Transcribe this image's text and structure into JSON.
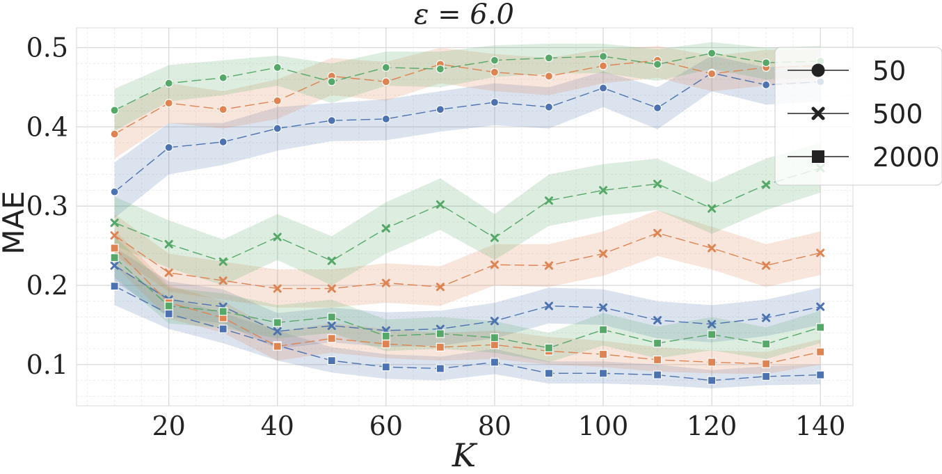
{
  "chart_data": {
    "type": "line",
    "title": "ε = 6.0",
    "xlabel": "K",
    "ylabel": "MAE",
    "xlim": [
      3,
      146
    ],
    "ylim": [
      0.048,
      0.525
    ],
    "x": [
      10,
      20,
      30,
      40,
      50,
      60,
      70,
      80,
      90,
      100,
      110,
      120,
      130,
      140
    ],
    "x_ticks": [
      20,
      40,
      60,
      80,
      100,
      120,
      140
    ],
    "x_tick_labels": [
      "20",
      "40",
      "60",
      "80",
      "100",
      "120",
      "140"
    ],
    "y_ticks": [
      0.1,
      0.2,
      0.3,
      0.4,
      0.5
    ],
    "y_tick_labels": [
      "0.1",
      "0.2",
      "0.3",
      "0.4",
      "0.5"
    ],
    "grid": true,
    "legend_position": "top-right",
    "colors": {
      "blue": "#4c72b0",
      "orange": "#dd8452",
      "green": "#55a868"
    },
    "legend": [
      {
        "label": "50",
        "marker": "circle"
      },
      {
        "label": "500",
        "marker": "x"
      },
      {
        "label": "2000",
        "marker": "square"
      }
    ],
    "series": [
      {
        "group": "50",
        "color": "blue",
        "marker": "circle",
        "values": [
          0.318,
          0.374,
          0.381,
          0.398,
          0.408,
          0.41,
          0.422,
          0.431,
          0.425,
          0.449,
          0.424,
          0.468,
          0.453,
          0.457
        ],
        "lower": [
          0.285,
          0.34,
          0.352,
          0.37,
          0.382,
          0.383,
          0.394,
          0.402,
          0.398,
          0.425,
          0.397,
          0.445,
          0.428,
          0.432
        ],
        "upper": [
          0.355,
          0.405,
          0.405,
          0.425,
          0.43,
          0.435,
          0.445,
          0.455,
          0.45,
          0.47,
          0.45,
          0.49,
          0.475,
          0.48
        ]
      },
      {
        "group": "50",
        "color": "orange",
        "marker": "circle",
        "values": [
          0.391,
          0.43,
          0.422,
          0.433,
          0.464,
          0.457,
          0.479,
          0.469,
          0.464,
          0.477,
          0.484,
          0.467,
          0.475,
          0.477
        ],
        "lower": [
          0.36,
          0.405,
          0.398,
          0.41,
          0.44,
          0.433,
          0.455,
          0.445,
          0.44,
          0.455,
          0.462,
          0.445,
          0.452,
          0.455
        ],
        "upper": [
          0.42,
          0.455,
          0.445,
          0.46,
          0.487,
          0.482,
          0.5,
          0.492,
          0.487,
          0.498,
          0.502,
          0.49,
          0.497,
          0.498
        ]
      },
      {
        "group": "50",
        "color": "green",
        "marker": "circle",
        "values": [
          0.421,
          0.455,
          0.462,
          0.475,
          0.457,
          0.475,
          0.473,
          0.484,
          0.487,
          0.489,
          0.479,
          0.493,
          0.481,
          0.483
        ],
        "lower": [
          0.395,
          0.432,
          0.44,
          0.452,
          0.43,
          0.452,
          0.45,
          0.463,
          0.467,
          0.468,
          0.458,
          0.473,
          0.46,
          0.462
        ],
        "upper": [
          0.448,
          0.478,
          0.484,
          0.49,
          0.48,
          0.495,
          0.495,
          0.503,
          0.505,
          0.505,
          0.498,
          0.507,
          0.5,
          0.502
        ]
      },
      {
        "group": "500",
        "color": "blue",
        "marker": "x",
        "values": [
          0.225,
          0.182,
          0.173,
          0.142,
          0.149,
          0.143,
          0.145,
          0.155,
          0.174,
          0.172,
          0.156,
          0.151,
          0.159,
          0.173
        ],
        "lower": [
          0.205,
          0.16,
          0.152,
          0.12,
          0.128,
          0.122,
          0.124,
          0.133,
          0.152,
          0.15,
          0.133,
          0.128,
          0.136,
          0.15
        ],
        "upper": [
          0.248,
          0.205,
          0.195,
          0.165,
          0.172,
          0.166,
          0.168,
          0.178,
          0.197,
          0.195,
          0.18,
          0.175,
          0.182,
          0.197
        ]
      },
      {
        "group": "500",
        "color": "orange",
        "marker": "x",
        "values": [
          0.263,
          0.216,
          0.206,
          0.196,
          0.196,
          0.203,
          0.198,
          0.226,
          0.225,
          0.24,
          0.266,
          0.247,
          0.225,
          0.241
        ],
        "lower": [
          0.238,
          0.192,
          0.182,
          0.172,
          0.172,
          0.178,
          0.174,
          0.2,
          0.198,
          0.212,
          0.237,
          0.22,
          0.198,
          0.213
        ],
        "upper": [
          0.29,
          0.24,
          0.23,
          0.22,
          0.22,
          0.228,
          0.224,
          0.252,
          0.252,
          0.268,
          0.295,
          0.274,
          0.252,
          0.268
        ]
      },
      {
        "group": "500",
        "color": "green",
        "marker": "x",
        "values": [
          0.279,
          0.252,
          0.23,
          0.261,
          0.231,
          0.272,
          0.302,
          0.26,
          0.307,
          0.32,
          0.328,
          0.297,
          0.327,
          0.348
        ],
        "lower": [
          0.25,
          0.222,
          0.2,
          0.232,
          0.2,
          0.24,
          0.27,
          0.232,
          0.275,
          0.288,
          0.295,
          0.265,
          0.295,
          0.317
        ],
        "upper": [
          0.312,
          0.282,
          0.258,
          0.29,
          0.262,
          0.305,
          0.335,
          0.29,
          0.34,
          0.353,
          0.36,
          0.33,
          0.36,
          0.38
        ]
      },
      {
        "group": "2000",
        "color": "blue",
        "marker": "square",
        "values": [
          0.199,
          0.164,
          0.145,
          0.124,
          0.105,
          0.097,
          0.095,
          0.103,
          0.089,
          0.089,
          0.087,
          0.08,
          0.085,
          0.087
        ],
        "lower": [
          0.175,
          0.145,
          0.127,
          0.105,
          0.09,
          0.082,
          0.08,
          0.088,
          0.076,
          0.076,
          0.074,
          0.07,
          0.074,
          0.075
        ],
        "upper": [
          0.225,
          0.185,
          0.165,
          0.143,
          0.122,
          0.113,
          0.11,
          0.12,
          0.104,
          0.104,
          0.1,
          0.093,
          0.098,
          0.1
        ]
      },
      {
        "group": "2000",
        "color": "orange",
        "marker": "square",
        "values": [
          0.247,
          0.178,
          0.159,
          0.123,
          0.133,
          0.126,
          0.122,
          0.125,
          0.117,
          0.113,
          0.106,
          0.103,
          0.101,
          0.116
        ],
        "lower": [
          0.225,
          0.158,
          0.14,
          0.105,
          0.115,
          0.108,
          0.105,
          0.107,
          0.1,
          0.097,
          0.091,
          0.089,
          0.088,
          0.1
        ],
        "upper": [
          0.27,
          0.2,
          0.18,
          0.142,
          0.152,
          0.145,
          0.14,
          0.143,
          0.135,
          0.13,
          0.122,
          0.118,
          0.116,
          0.132
        ]
      },
      {
        "group": "2000",
        "color": "green",
        "marker": "square",
        "values": [
          0.235,
          0.174,
          0.167,
          0.153,
          0.16,
          0.136,
          0.139,
          0.134,
          0.121,
          0.144,
          0.127,
          0.138,
          0.126,
          0.147
        ],
        "lower": [
          0.21,
          0.152,
          0.146,
          0.133,
          0.14,
          0.117,
          0.12,
          0.115,
          0.103,
          0.124,
          0.108,
          0.118,
          0.107,
          0.127
        ],
        "upper": [
          0.262,
          0.197,
          0.19,
          0.175,
          0.182,
          0.157,
          0.16,
          0.155,
          0.14,
          0.165,
          0.148,
          0.16,
          0.147,
          0.168
        ]
      }
    ]
  }
}
